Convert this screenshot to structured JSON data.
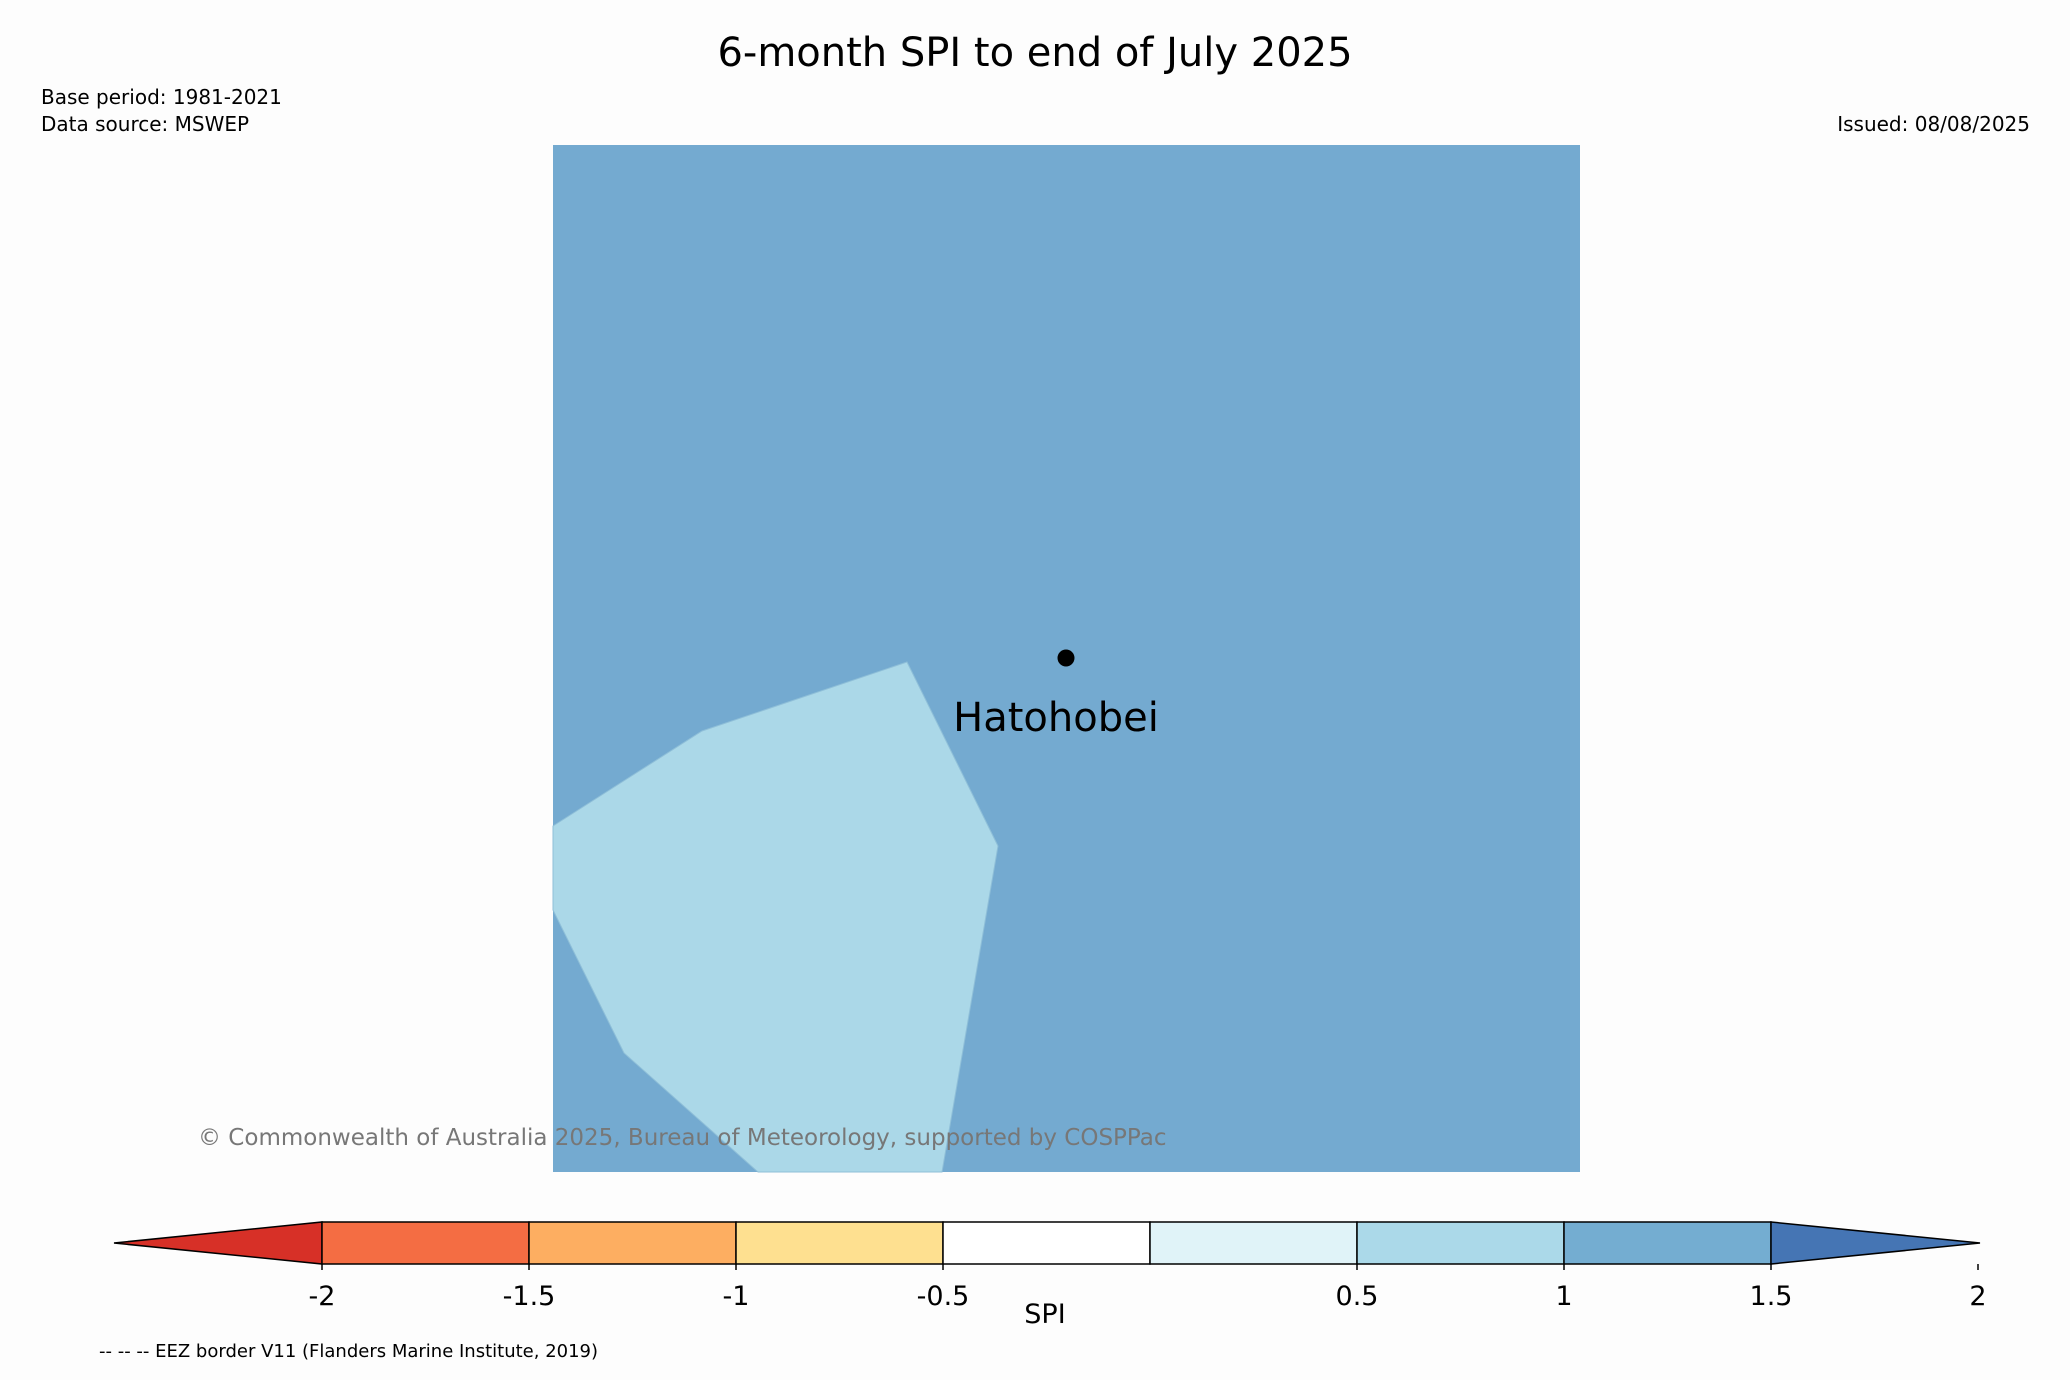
{
  "title": "6-month SPI to end of July 2025",
  "base_period": "Base period: 1981-2021",
  "data_source": "Data source: MSWEP",
  "issued": "Issued: 08/08/2025",
  "map": {
    "place_label": "Hatohobei",
    "copyright": "© Commonwealth of Australia 2025, Bureau of Meteorology, supported by COSPPac",
    "background_spi_color": "#74aad0",
    "anomaly_color": "#abd8e8"
  },
  "colorbar": {
    "label": "SPI",
    "ticks": [
      "-2",
      "-1.5",
      "-1",
      "-0.5",
      "0.5",
      "1",
      "1.5",
      "2"
    ],
    "underflow_color": "#d73027",
    "overflow_color": "#4575b4",
    "bins": [
      {
        "from": "-2",
        "to": "-1.5",
        "color": "#f46d43"
      },
      {
        "from": "-1.5",
        "to": "-1",
        "color": "#fdae61"
      },
      {
        "from": "-1",
        "to": "-0.5",
        "color": "#fee090"
      },
      {
        "from": "-0.5",
        "to": "0.5",
        "color": "#ffffff"
      },
      {
        "from": "0.5",
        "to": "1",
        "color": "#e0f3f8"
      },
      {
        "from": "1",
        "to": "1.5",
        "color": "#abd9e9"
      },
      {
        "from": "1.5",
        "to": "2",
        "color": "#74add1"
      }
    ]
  },
  "footer_note": "-- -- -- EEZ border V11 (Flanders Marine Institute, 2019)"
}
